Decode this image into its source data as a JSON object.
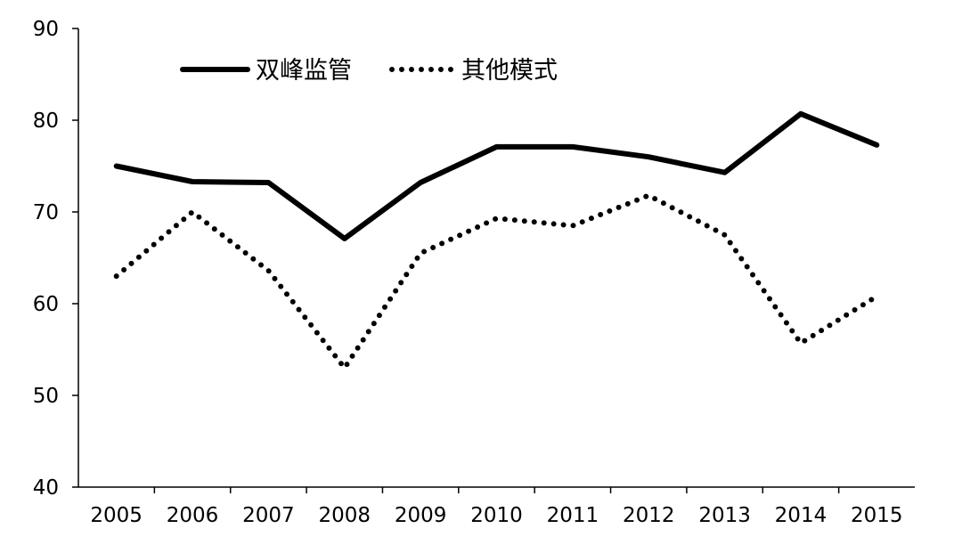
{
  "chart_data": {
    "type": "line",
    "title": "",
    "xlabel": "",
    "ylabel": "",
    "categories": [
      "2005",
      "2006",
      "2007",
      "2008",
      "2009",
      "2010",
      "2011",
      "2012",
      "2013",
      "2014",
      "2015"
    ],
    "ylim": [
      40,
      90
    ],
    "yticks": [
      "40",
      "50",
      "60",
      "70",
      "80",
      "90"
    ],
    "grid": false,
    "legend_position": "top-left",
    "series": [
      {
        "name": "双峰监管",
        "style": "solid",
        "color": "#000000",
        "values": [
          75.0,
          73.3,
          73.2,
          67.1,
          73.2,
          77.1,
          77.1,
          76.0,
          74.3,
          80.7,
          77.3
        ]
      },
      {
        "name": "其他模式",
        "style": "dotted",
        "color": "#000000",
        "values": [
          63.0,
          70.0,
          63.6,
          53.0,
          65.5,
          69.3,
          68.5,
          71.8,
          67.5,
          55.7,
          60.8
        ]
      }
    ]
  }
}
